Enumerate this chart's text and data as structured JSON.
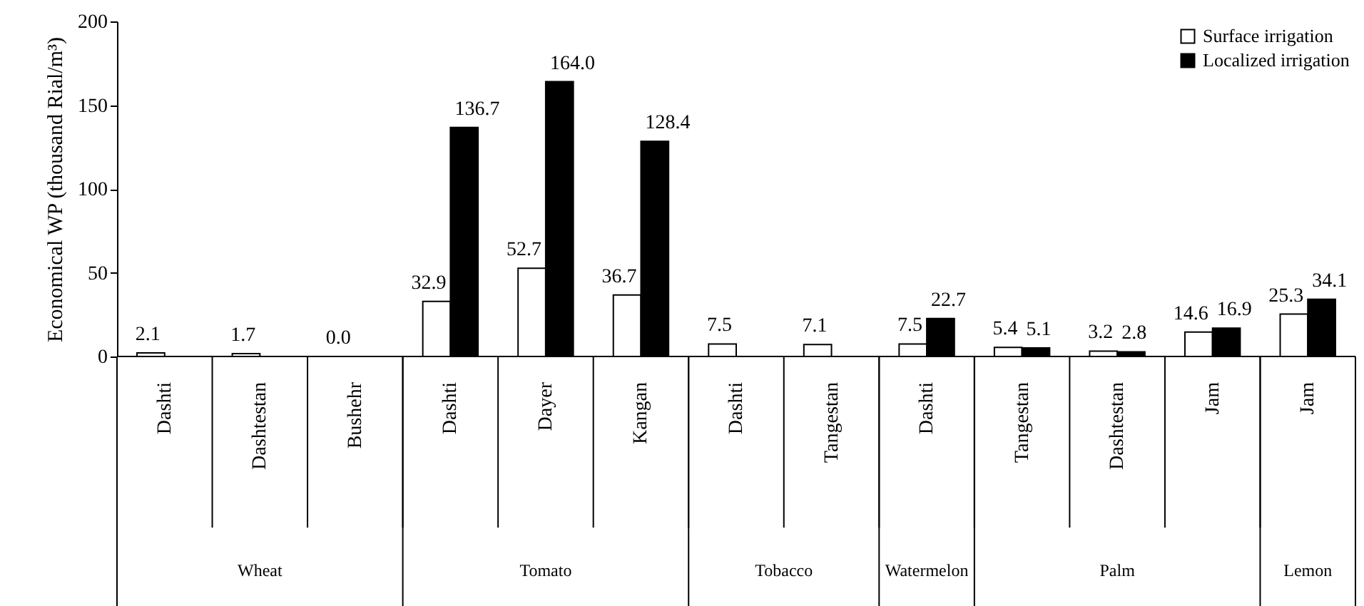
{
  "chart_data": {
    "type": "bar",
    "ylabel": "Economical WP (thousand Rial/m³)",
    "categories": [
      "Dashti",
      "Dashtestan",
      "Bushehr",
      "Dashti",
      "Dayer",
      "Kangan",
      "Dashti",
      "Tangestan",
      "Dashti",
      "Tangestan",
      "Dashtestan",
      "Jam",
      "Jam"
    ],
    "series": [
      {
        "name": "Surface irrigation",
        "color": "#ffffff",
        "values": [
          2.1,
          1.7,
          0.0,
          32.9,
          52.7,
          36.7,
          7.5,
          7.1,
          7.5,
          5.4,
          3.2,
          14.6,
          25.3
        ],
        "value_labels": [
          "2.1",
          "1.7",
          "0.0",
          "32.9",
          "52.7",
          "36.7",
          "7.5",
          "7.1",
          "7.5",
          "5.4",
          "3.2",
          "14.6",
          "25.3"
        ]
      },
      {
        "name": "Localized irrigation",
        "color": "#000000",
        "values": [
          null,
          null,
          null,
          136.7,
          164,
          128.4,
          null,
          null,
          22.7,
          5.1,
          2.8,
          16.9,
          34.1
        ],
        "value_labels": [
          null,
          null,
          null,
          "136.7",
          "164.0",
          "128.4",
          null,
          null,
          "22.7",
          "5.1",
          "2.8",
          "16.9",
          "34.1"
        ]
      }
    ],
    "annotations": [
      "Wheat",
      "Tomato",
      "Tobacco",
      "Watermelon",
      "Palm",
      "Lemon"
    ],
    "ylim": [
      0,
      200
    ],
    "yticks": [
      0,
      50,
      100,
      150,
      200
    ],
    "grid": false,
    "legend": "top right"
  }
}
